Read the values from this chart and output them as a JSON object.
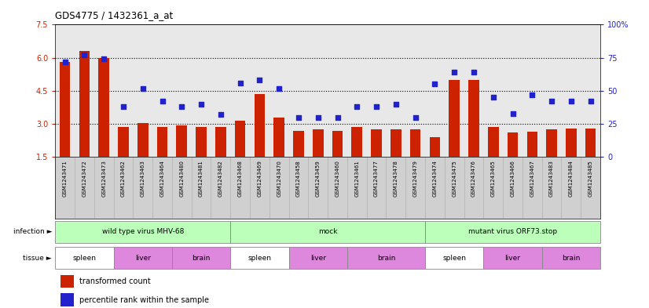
{
  "title": "GDS4775 / 1432361_a_at",
  "samples": [
    "GSM1243471",
    "GSM1243472",
    "GSM1243473",
    "GSM1243462",
    "GSM1243463",
    "GSM1243464",
    "GSM1243480",
    "GSM1243481",
    "GSM1243482",
    "GSM1243468",
    "GSM1243469",
    "GSM1243470",
    "GSM1243458",
    "GSM1243459",
    "GSM1243460",
    "GSM1243461",
    "GSM1243477",
    "GSM1243478",
    "GSM1243479",
    "GSM1243474",
    "GSM1243475",
    "GSM1243476",
    "GSM1243465",
    "GSM1243466",
    "GSM1243467",
    "GSM1243483",
    "GSM1243484",
    "GSM1243485"
  ],
  "bar_values": [
    5.8,
    6.3,
    6.0,
    2.85,
    3.05,
    2.85,
    2.95,
    2.85,
    2.85,
    3.15,
    4.35,
    3.3,
    2.7,
    2.75,
    2.7,
    2.85,
    2.75,
    2.75,
    2.75,
    2.4,
    5.0,
    5.0,
    2.85,
    2.6,
    2.65,
    2.75,
    2.8,
    2.8
  ],
  "scatter_values": [
    72,
    77,
    74,
    38,
    52,
    42,
    38,
    40,
    32,
    56,
    58,
    52,
    30,
    30,
    30,
    38,
    38,
    40,
    30,
    55,
    64,
    64,
    45,
    33,
    47,
    42,
    42,
    42
  ],
  "bar_color": "#cc2200",
  "scatter_color": "#2222cc",
  "ylim_left": [
    1.5,
    7.5
  ],
  "ylim_right": [
    0,
    100
  ],
  "yticks_left": [
    1.5,
    3.0,
    4.5,
    6.0,
    7.5
  ],
  "yticks_right": [
    0,
    25,
    50,
    75,
    100
  ],
  "hlines": [
    3.0,
    4.5,
    6.0
  ],
  "inf_groups": [
    {
      "label": "wild type virus MHV-68",
      "start": 0,
      "end": 9
    },
    {
      "label": "mock",
      "start": 9,
      "end": 19
    },
    {
      "label": "mutant virus ORF73.stop",
      "start": 19,
      "end": 28
    }
  ],
  "tis_groups": [
    {
      "label": "spleen",
      "start": 0,
      "end": 3,
      "color": "#ffffff"
    },
    {
      "label": "liver",
      "start": 3,
      "end": 6,
      "color": "#dd88dd"
    },
    {
      "label": "brain",
      "start": 6,
      "end": 9,
      "color": "#dd88dd"
    },
    {
      "label": "spleen",
      "start": 9,
      "end": 12,
      "color": "#ffffff"
    },
    {
      "label": "liver",
      "start": 12,
      "end": 15,
      "color": "#dd88dd"
    },
    {
      "label": "brain",
      "start": 15,
      "end": 19,
      "color": "#dd88dd"
    },
    {
      "label": "spleen",
      "start": 19,
      "end": 22,
      "color": "#ffffff"
    },
    {
      "label": "liver",
      "start": 22,
      "end": 25,
      "color": "#dd88dd"
    },
    {
      "label": "brain",
      "start": 25,
      "end": 28,
      "color": "#dd88dd"
    }
  ],
  "legend_bar_label": "transformed count",
  "legend_scatter_label": "percentile rank within the sample",
  "label_infection": "infection",
  "label_tissue": "tissue",
  "inf_color": "#bbffbb",
  "chart_bg": "#e8e8e8",
  "xtick_bg": "#d0d0d0",
  "row_border_color": "#888888"
}
